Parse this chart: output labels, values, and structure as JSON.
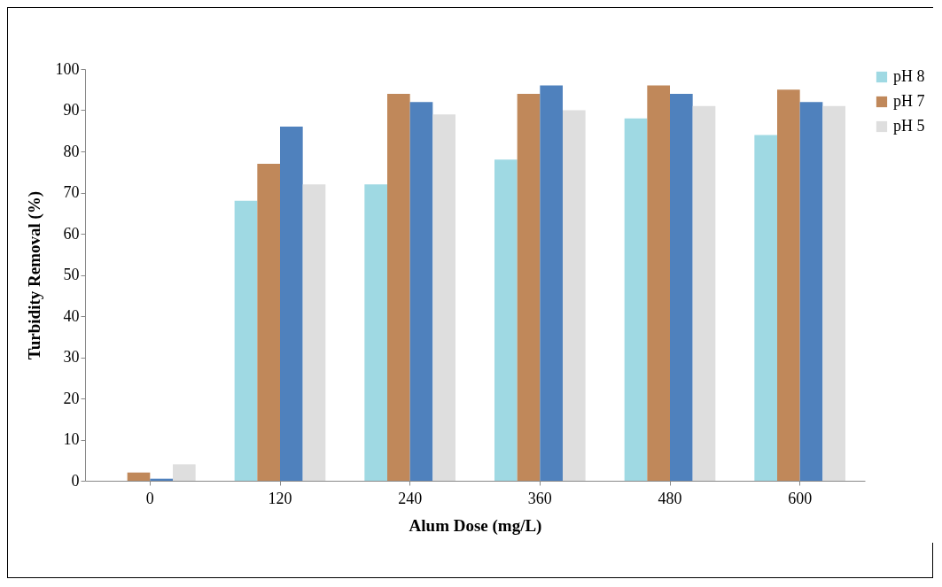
{
  "chart_data": {
    "type": "bar",
    "xlabel": "Alum Dose (mg/L)",
    "ylabel": "Turbidity Removal (%)",
    "categories": [
      "0",
      "120",
      "240",
      "360",
      "480",
      "600"
    ],
    "series": [
      {
        "name": "pH 8",
        "color": "#9fd9e3",
        "values": [
          0,
          68,
          72,
          78,
          88,
          84
        ]
      },
      {
        "name": "pH 7",
        "color": "#c0885a",
        "values": [
          2,
          77,
          94,
          94,
          96,
          95
        ]
      },
      {
        "color": "#4f81bd",
        "values": [
          0.5,
          86,
          92,
          96,
          94,
          92
        ]
      },
      {
        "name": "pH 5",
        "color": "#dedede",
        "values": [
          4,
          72,
          89,
          90,
          91,
          91
        ]
      }
    ],
    "ylim": [
      0,
      100
    ],
    "yticks": [
      0,
      10,
      20,
      30,
      40,
      50,
      60,
      70,
      80,
      90,
      100
    ],
    "grid": false,
    "legend": "right"
  }
}
